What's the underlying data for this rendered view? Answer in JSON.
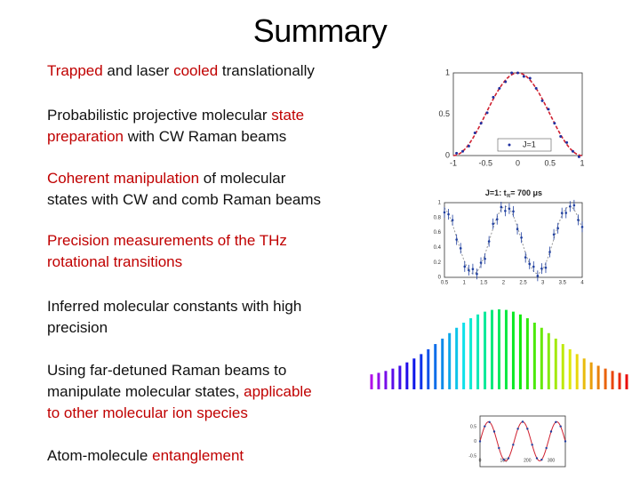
{
  "title": "Summary",
  "items": [
    {
      "lines": [
        [
          {
            "text": "Trapped",
            "color": "#c00000"
          },
          {
            "text": " and laser "
          },
          {
            "text": "cooled",
            "color": "#c00000"
          },
          {
            "text": " translationally"
          }
        ]
      ]
    },
    {
      "lines": [
        [
          {
            "text": "Probabilistic projective molecular "
          },
          {
            "text": "state",
            "color": "#c00000"
          }
        ],
        [
          {
            "text": "preparation",
            "color": "#c00000"
          },
          {
            "text": " with CW Raman beams"
          }
        ]
      ]
    },
    {
      "lines": [
        [
          {
            "text": "Coherent manipulation",
            "color": "#c00000"
          },
          {
            "text": " of molecular"
          }
        ],
        [
          {
            "text": "states with CW and comb Raman beams"
          }
        ]
      ]
    },
    {
      "lines": [
        [
          {
            "text": "Precision measurements of the THz",
            "color": "#c00000"
          }
        ],
        [
          {
            "text": "rotational transitions",
            "color": "#c00000"
          }
        ]
      ]
    },
    {
      "lines": [
        [
          {
            "text": "Inferred molecular constants with high"
          }
        ],
        [
          {
            "text": "precision"
          }
        ]
      ]
    },
    {
      "lines": [
        [
          {
            "text": "Using far-detuned Raman beams to"
          }
        ],
        [
          {
            "text": "manipulate molecular states, "
          },
          {
            "text": "applicable",
            "color": "#c00000"
          }
        ],
        [
          {
            "text": "to other molecular ion species",
            "color": "#c00000"
          }
        ]
      ]
    },
    {
      "lines": [
        [
          {
            "text": "Atom-molecule "
          },
          {
            "text": "entanglement",
            "color": "#c00000"
          }
        ]
      ]
    }
  ],
  "figures": {
    "polar": {
      "yticks": [
        "1",
        "0.5",
        "0"
      ],
      "xticks": [
        "-1",
        "-0.5",
        "0",
        "0.5",
        "1"
      ],
      "legend": "J=1"
    },
    "rabi": {
      "title": {
        "main": "J=1: t",
        "sub": "π",
        "rest": "= 700 μs"
      },
      "yticks": [
        "1",
        "0.8",
        "0.6",
        "0.4",
        "0.2",
        "0"
      ],
      "xticks": [
        "0.5",
        "1",
        "1.5",
        "2",
        "2.5",
        "3",
        "3.5",
        "4"
      ]
    },
    "ramsey": {
      "yticks": [
        "0.5",
        "0",
        "-0.5"
      ],
      "xticks": [
        "0",
        "100",
        "200",
        "300"
      ]
    }
  }
}
